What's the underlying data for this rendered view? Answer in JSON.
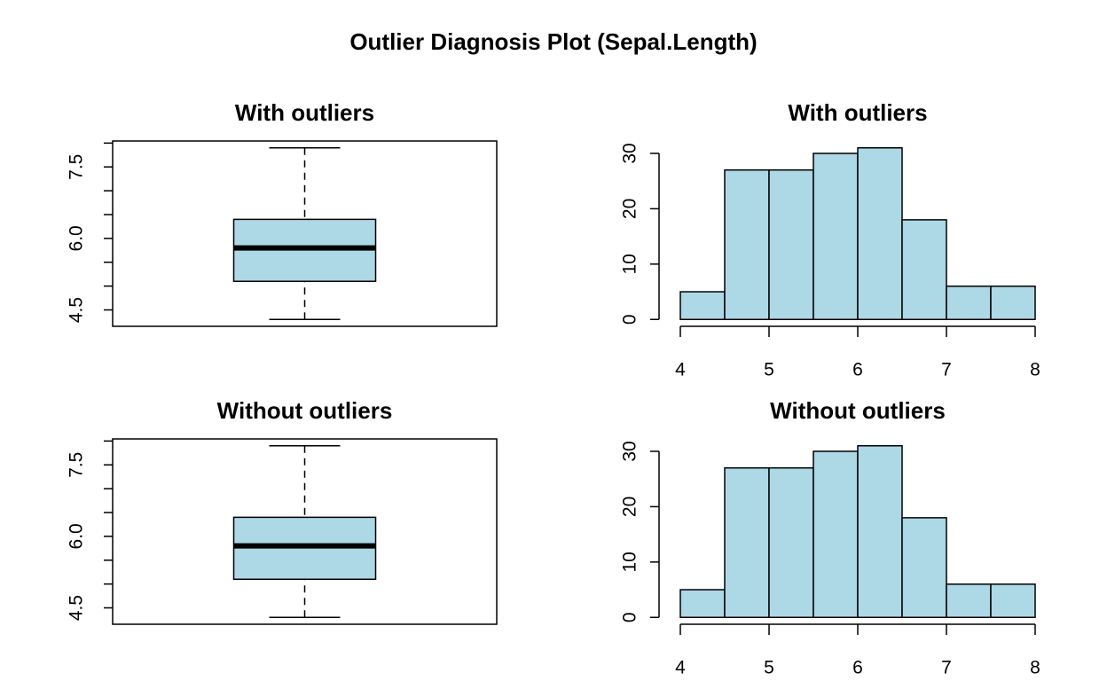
{
  "title": "Outlier Diagnosis Plot (Sepal.Length)",
  "chart_data": [
    {
      "type": "box",
      "title": "With outliers",
      "color": "#add8e6",
      "min": 4.3,
      "q1": 5.1,
      "median": 5.8,
      "q3": 6.4,
      "max": 7.9,
      "ylim": [
        4.156,
        8.044
      ],
      "yticks": [
        {
          "value": 4.5,
          "label": "4.5"
        },
        {
          "value": 5,
          "label": null
        },
        {
          "value": 5.5,
          "label": null
        },
        {
          "value": 6,
          "label": "6.0"
        },
        {
          "value": 6.5,
          "label": null
        },
        {
          "value": 7,
          "label": null
        },
        {
          "value": 7.5,
          "label": "7.5"
        },
        {
          "value": 8,
          "label": null
        }
      ]
    },
    {
      "type": "histogram",
      "title": "With outliers",
      "color": "#add8e6",
      "bins": [
        4,
        4.5,
        5,
        5.5,
        6,
        6.5,
        7,
        7.5,
        8
      ],
      "values": [
        5,
        27,
        27,
        30,
        31,
        18,
        6,
        6
      ],
      "xlim": [
        3.84,
        8.16
      ],
      "xticks": [
        4,
        5,
        6,
        7,
        8
      ],
      "ylim": [
        -1.24,
        32.24
      ],
      "yticks": [
        0,
        10,
        20,
        30
      ]
    },
    {
      "type": "box",
      "title": "Without outliers",
      "color": "#add8e6",
      "min": 4.3,
      "q1": 5.1,
      "median": 5.8,
      "q3": 6.4,
      "max": 7.9,
      "ylim": [
        4.156,
        8.044
      ],
      "yticks": [
        {
          "value": 4.5,
          "label": "4.5"
        },
        {
          "value": 5,
          "label": null
        },
        {
          "value": 5.5,
          "label": null
        },
        {
          "value": 6,
          "label": "6.0"
        },
        {
          "value": 6.5,
          "label": null
        },
        {
          "value": 7,
          "label": null
        },
        {
          "value": 7.5,
          "label": "7.5"
        },
        {
          "value": 8,
          "label": null
        }
      ]
    },
    {
      "type": "histogram",
      "title": "Without outliers",
      "color": "#add8e6",
      "bins": [
        4,
        4.5,
        5,
        5.5,
        6,
        6.5,
        7,
        7.5,
        8
      ],
      "values": [
        5,
        27,
        27,
        30,
        31,
        18,
        6,
        6
      ],
      "xlim": [
        3.84,
        8.16
      ],
      "xticks": [
        4,
        5,
        6,
        7,
        8
      ],
      "ylim": [
        -1.24,
        32.24
      ],
      "yticks": [
        0,
        10,
        20,
        30
      ]
    }
  ]
}
